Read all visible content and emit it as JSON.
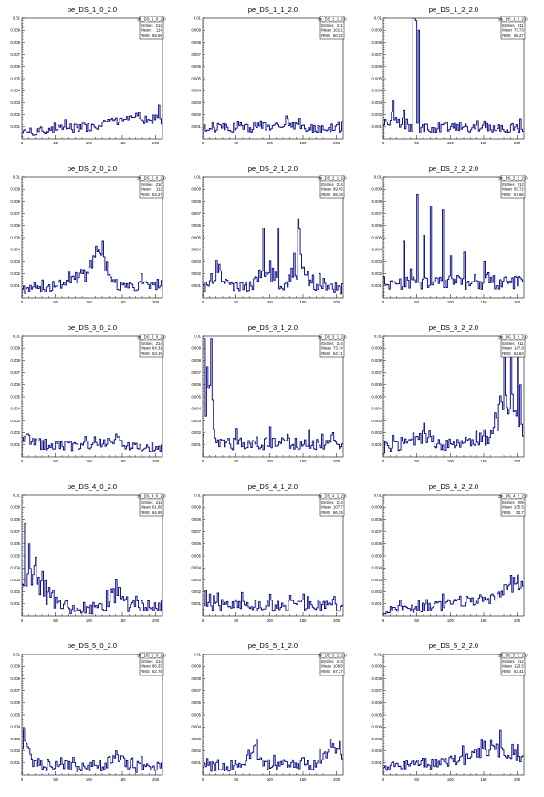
{
  "chart_data": [
    {
      "type": "histogram",
      "title": "pe_DS_1_0_2.0",
      "ylim": [
        0,
        0.01
      ],
      "xlim": [
        0,
        210
      ],
      "stats": {
        "name": "pe_DS_1_0_2.0",
        "entries_label": "Entries",
        "entries": "212",
        "mean_label": "Mean",
        "mean": "114",
        "rms_label": "RMS",
        "rms": "58.66"
      },
      "profile": {
        "base": 0.00055,
        "amp": 0.00035,
        "trend": 0.0009,
        "bumps": [
          [
            160,
            25,
            0.0005
          ]
        ],
        "spikes": [
          [
            205,
            0.0028
          ],
          [
            173,
            0.0019
          ]
        ]
      }
    },
    {
      "type": "histogram",
      "title": "pe_DS_1_1_2.0",
      "ylim": [
        0,
        0.01
      ],
      "xlim": [
        0,
        210
      ],
      "stats": {
        "name": "pe_DS_1_1_2.0",
        "entries_label": "Entries",
        "entries": "211",
        "mean_label": "Mean",
        "mean": "101.1",
        "rms_label": "RMS",
        "rms": "60.52"
      },
      "profile": {
        "base": 0.0009,
        "amp": 0.0004,
        "trend": 0.0,
        "bumps": [
          [
            120,
            15,
            0.0004
          ]
        ],
        "spikes": [
          [
            125,
            0.0019
          ],
          [
            145,
            0.0017
          ]
        ]
      }
    },
    {
      "type": "histogram",
      "title": "pe_DS_1_2_2.0",
      "ylim": [
        0,
        0.01
      ],
      "xlim": [
        0,
        210
      ],
      "stats": {
        "name": "pe_DS_1_2_2.0",
        "entries_label": "Entries",
        "entries": "211",
        "mean_label": "Mean",
        "mean": "73.73",
        "rms_label": "RMS",
        "rms": "58.27"
      },
      "profile": {
        "base": 0.0009,
        "amp": 0.0004,
        "trend": 0.0,
        "bumps": [
          [
            15,
            8,
            0.0008
          ]
        ],
        "spikes": [
          [
            45,
            0.0105
          ],
          [
            47,
            0.0105
          ],
          [
            49,
            0.0098
          ],
          [
            52,
            0.009
          ],
          [
            14,
            0.0032
          ],
          [
            30,
            0.0024
          ]
        ]
      }
    },
    {
      "type": "histogram",
      "title": "pe_DS_2_0_2.0",
      "ylim": [
        0,
        0.01
      ],
      "xlim": [
        0,
        210
      ],
      "stats": {
        "name": "pe_DS_2_0_2.0",
        "entries_label": "Entries",
        "entries": "210",
        "mean_label": "Mean",
        "mean": "112",
        "rms_label": "RMS",
        "rms": "53.27"
      },
      "profile": {
        "base": 0.0006,
        "amp": 0.0004,
        "trend": 0.0005,
        "bumps": [
          [
            115,
            10,
            0.0025
          ],
          [
            80,
            25,
            0.0008
          ]
        ],
        "spikes": [
          [
            120,
            0.0047
          ],
          [
            107,
            0.0035
          ]
        ]
      }
    },
    {
      "type": "histogram",
      "title": "pe_DS_2_1_2.0",
      "ylim": [
        0,
        0.01
      ],
      "xlim": [
        0,
        210
      ],
      "stats": {
        "name": "pe_DS_2_1_2.0",
        "entries_label": "Entries",
        "entries": "214",
        "mean_label": "Mean",
        "mean": "99.95",
        "rms_label": "RMS",
        "rms": "58.29"
      },
      "profile": {
        "base": 0.0008,
        "amp": 0.0005,
        "trend": 0.0,
        "bumps": [
          [
            95,
            10,
            0.002
          ],
          [
            145,
            10,
            0.0022
          ],
          [
            25,
            10,
            0.0009
          ]
        ],
        "spikes": [
          [
            90,
            0.0058
          ],
          [
            113,
            0.0058
          ],
          [
            145,
            0.0057
          ],
          [
            142,
            0.0065
          ],
          [
            20,
            0.0031
          ]
        ]
      }
    },
    {
      "type": "histogram",
      "title": "pe_DS_2_2_2.0",
      "ylim": [
        0,
        0.01
      ],
      "xlim": [
        0,
        210
      ],
      "stats": {
        "name": "pe_DS_2_2_2.0",
        "entries_label": "Entries",
        "entries": "212",
        "mean_label": "Mean",
        "mean": "93.72",
        "rms_label": "RMS",
        "rms": "57.66"
      },
      "profile": {
        "base": 0.0013,
        "amp": 0.0006,
        "trend": 0.0,
        "bumps": [],
        "spikes": [
          [
            50,
            0.0086
          ],
          [
            70,
            0.0076
          ],
          [
            88,
            0.0073
          ],
          [
            30,
            0.0047
          ],
          [
            60,
            0.0052
          ],
          [
            120,
            0.0038
          ],
          [
            100,
            0.0035
          ],
          [
            150,
            0.003
          ]
        ]
      }
    },
    {
      "type": "histogram",
      "title": "pe_DS_3_0_2.0",
      "ylim": [
        0,
        0.01
      ],
      "xlim": [
        0,
        210
      ],
      "stats": {
        "name": "pe_DS_3_0_2.0",
        "entries_label": "Entries",
        "entries": "214",
        "mean_label": "Mean",
        "mean": "84.31",
        "rms_label": "RMS",
        "rms": "63.19"
      },
      "profile": {
        "base": 0.001,
        "amp": 0.0004,
        "trend": -0.0002,
        "bumps": [
          [
            140,
            10,
            0.0006
          ],
          [
            10,
            10,
            0.0005
          ]
        ],
        "spikes": [
          [
            140,
            0.0019
          ],
          [
            10,
            0.0018
          ]
        ]
      }
    },
    {
      "type": "histogram",
      "title": "pe_DS_3_1_2.0",
      "ylim": [
        0,
        0.01
      ],
      "xlim": [
        0,
        210
      ],
      "stats": {
        "name": "pe_DS_3_1_2.0",
        "entries_label": "Entries",
        "entries": "214",
        "mean_label": "Mean",
        "mean": "73.74",
        "rms_label": "RMS",
        "rms": "64.71"
      },
      "profile": {
        "base": 0.0011,
        "amp": 0.0005,
        "trend": 0.0,
        "bumps": [
          [
            10,
            4,
            0.004
          ]
        ],
        "spikes": [
          [
            3,
            0.0098
          ],
          [
            12,
            0.0098
          ],
          [
            7,
            0.0075
          ],
          [
            15,
            0.0047
          ],
          [
            100,
            0.0025
          ]
        ]
      }
    },
    {
      "type": "histogram",
      "title": "pe_DS_3_2_2.0",
      "ylim": [
        0,
        0.01
      ],
      "xlim": [
        0,
        210
      ],
      "stats": {
        "name": "pe_DS_3_2_2.0",
        "entries_label": "Entries",
        "entries": "211",
        "mean_label": "Mean",
        "mean": "147.8",
        "rms_label": "RMS",
        "rms": "62.84"
      },
      "profile": {
        "base": 0.0008,
        "amp": 0.0005,
        "trend": 0.0006,
        "bumps": [
          [
            185,
            12,
            0.004
          ],
          [
            60,
            10,
            0.0008
          ]
        ],
        "spikes": [
          [
            180,
            0.0098
          ],
          [
            190,
            0.0095
          ],
          [
            200,
            0.0085
          ],
          [
            205,
            0.006
          ],
          [
            60,
            0.0028
          ]
        ]
      }
    },
    {
      "type": "histogram",
      "title": "pe_DS_4_0_2.0",
      "ylim": [
        0,
        0.01
      ],
      "xlim": [
        0,
        210
      ],
      "stats": {
        "name": "pe_DS_4_0_2.0",
        "entries_label": "Entries",
        "entries": "212",
        "mean_label": "Mean",
        "mean": "61.68",
        "rms_label": "RMS",
        "rms": "64.69"
      },
      "profile": {
        "base": 0.0007,
        "amp": 0.0006,
        "trend": 0.0,
        "bumps": [
          [
            15,
            18,
            0.0025
          ],
          [
            140,
            10,
            0.0012
          ]
        ],
        "spikes": [
          [
            5,
            0.0077
          ],
          [
            10,
            0.006
          ],
          [
            20,
            0.0049
          ],
          [
            30,
            0.0037
          ],
          [
            140,
            0.003
          ]
        ]
      }
    },
    {
      "type": "histogram",
      "title": "pe_DS_4_1_2.0",
      "ylim": [
        0,
        0.01
      ],
      "xlim": [
        0,
        210
      ],
      "stats": {
        "name": "pe_DS_4_1_2.0",
        "entries_label": "Entries",
        "entries": "214",
        "mean_label": "Mean",
        "mean": "107.7",
        "rms_label": "RMS",
        "rms": "66.29"
      },
      "profile": {
        "base": 0.0009,
        "amp": 0.0005,
        "trend": 0.0,
        "bumps": [],
        "spikes": [
          [
            5,
            0.0021
          ],
          [
            150,
            0.0018
          ],
          [
            130,
            0.0017
          ]
        ]
      }
    },
    {
      "type": "histogram",
      "title": "pe_DS_4_2_2.0",
      "ylim": [
        0,
        0.01
      ],
      "xlim": [
        0,
        210
      ],
      "stats": {
        "name": "pe_DS_4_2_2.0",
        "entries_label": "Entries",
        "entries": "209",
        "mean_label": "Mean",
        "mean": "135.5",
        "rms_label": "RMS",
        "rms": "52.7"
      },
      "profile": {
        "base": 0.0004,
        "amp": 0.0004,
        "trend": 0.0012,
        "bumps": [
          [
            195,
            12,
            0.0012
          ]
        ],
        "spikes": [
          [
            200,
            0.0034
          ],
          [
            180,
            0.0026
          ]
        ]
      }
    },
    {
      "type": "histogram",
      "title": "pe_DS_5_0_2.0",
      "ylim": [
        0,
        0.01
      ],
      "xlim": [
        0,
        210
      ],
      "stats": {
        "name": "pe_DS_5_0_2.0",
        "entries_label": "Entries",
        "entries": "213",
        "mean_label": "Mean",
        "mean": "86.33",
        "rms_label": "RMS",
        "rms": "62.75"
      },
      "profile": {
        "base": 0.0009,
        "amp": 0.0005,
        "trend": -0.0003,
        "bumps": [
          [
            5,
            8,
            0.0015
          ],
          [
            140,
            10,
            0.0006
          ]
        ],
        "spikes": [
          [
            2,
            0.0038
          ],
          [
            140,
            0.002
          ]
        ]
      }
    },
    {
      "type": "histogram",
      "title": "pe_DS_5_1_2.0",
      "ylim": [
        0,
        0.01
      ],
      "xlim": [
        0,
        210
      ],
      "stats": {
        "name": "pe_DS_5_1_2.0",
        "entries_label": "Entries",
        "entries": "213",
        "mean_label": "Mean",
        "mean": "106.8",
        "rms_label": "RMS",
        "rms": "67.27"
      },
      "profile": {
        "base": 0.0008,
        "amp": 0.0005,
        "trend": 0.0,
        "bumps": [
          [
            75,
            8,
            0.0012
          ],
          [
            195,
            10,
            0.0015
          ]
        ],
        "spikes": [
          [
            80,
            0.003
          ],
          [
            190,
            0.003
          ],
          [
            205,
            0.0028
          ],
          [
            195,
            0.0026
          ]
        ]
      }
    },
    {
      "type": "histogram",
      "title": "pe_DS_5_2_2.0",
      "ylim": [
        0,
        0.01
      ],
      "xlim": [
        0,
        210
      ],
      "stats": {
        "name": "pe_DS_5_2_2.0",
        "entries_label": "Entries",
        "entries": "212",
        "mean_label": "Mean",
        "mean": "123.5",
        "rms_label": "RMS",
        "rms": "63.41"
      },
      "profile": {
        "base": 0.0007,
        "amp": 0.0005,
        "trend": 0.0008,
        "bumps": [
          [
            160,
            20,
            0.0009
          ]
        ],
        "spikes": [
          [
            175,
            0.0037
          ],
          [
            150,
            0.0028
          ]
        ]
      }
    }
  ],
  "axis": {
    "y_ticks": [
      "0.001",
      "0.002",
      "0.003",
      "0.004",
      "0.005",
      "0.006",
      "0.007",
      "0.008",
      "0.009",
      "0.01"
    ],
    "x_ticks": [
      "0",
      "50",
      "100",
      "150",
      "200"
    ]
  },
  "colors": {
    "line": "#000080",
    "frame": "#000000",
    "background": "#ffffff"
  }
}
